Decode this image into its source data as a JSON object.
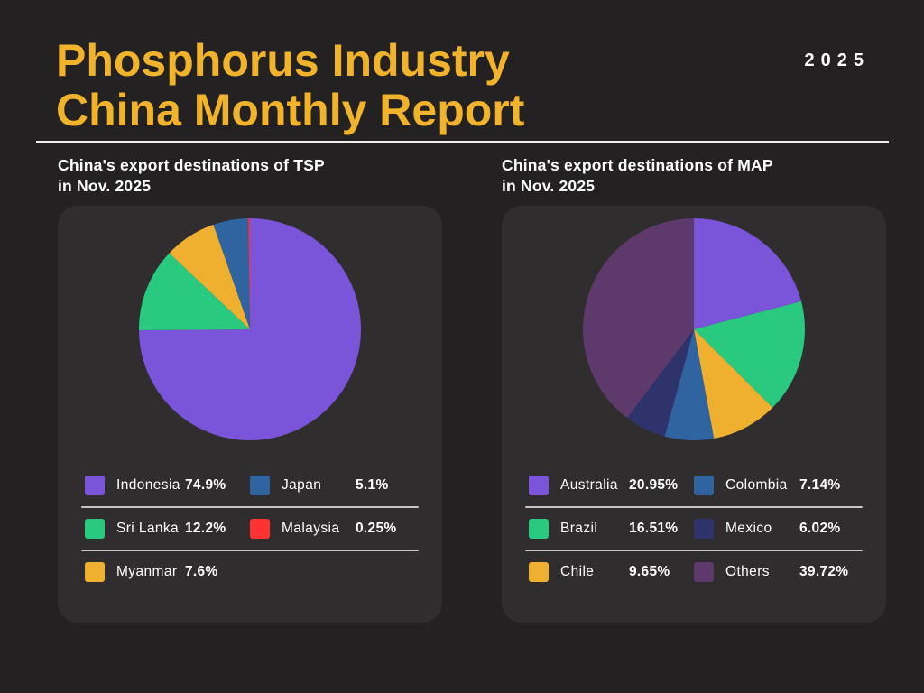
{
  "header": {
    "title_line1": "Phosphorus Industry",
    "title_line2": "China Monthly Report",
    "year_badge": "2025"
  },
  "colors": {
    "background": "#232121",
    "card": "#2F2D2D",
    "title_gold": "#F0B32B",
    "divider": "#C6C6C6",
    "text": "#FFFFFF"
  },
  "panels": [
    {
      "heading_line1": "China's export destinations of TSP",
      "heading_line2": "in Nov. 2025",
      "legend": [
        {
          "label": "Indonesia",
          "value": "74.9%",
          "color": "#7B55D9"
        },
        {
          "label": "Japan",
          "value": "5.1%",
          "color": "#2F64A1"
        },
        {
          "label": "Sri Lanka",
          "value": "12.2%",
          "color": "#29C97F"
        },
        {
          "label": "Malaysia",
          "value": "0.25%",
          "color": "#FF3131"
        },
        {
          "label": "Myanmar",
          "value": "7.6%",
          "color": "#EFB02F"
        }
      ]
    },
    {
      "heading_line1": "China's export destinations of MAP",
      "heading_line2": "in Nov. 2025",
      "legend": [
        {
          "label": "Australia",
          "value": "20.95%",
          "color": "#7B55D9"
        },
        {
          "label": "Colombia",
          "value": "7.14%",
          "color": "#2F64A1"
        },
        {
          "label": "Brazil",
          "value": "16.51%",
          "color": "#29C97F"
        },
        {
          "label": "Mexico",
          "value": "6.02%",
          "color": "#2E336C"
        },
        {
          "label": "Chile",
          "value": "9.65%",
          "color": "#EFB02F"
        },
        {
          "label": "Others",
          "value": "39.72%",
          "color": "#5E3A6C"
        }
      ]
    }
  ],
  "chart_data": [
    {
      "type": "pie",
      "title": "China's export destinations of TSP in Nov. 2025",
      "start_angle_deg": 0,
      "direction": "clockwise",
      "legend_position": "bottom",
      "slices": [
        {
          "label": "Indonesia",
          "value": 74.9,
          "color": "#7B55D9"
        },
        {
          "label": "Sri Lanka",
          "value": 12.2,
          "color": "#29C97F"
        },
        {
          "label": "Myanmar",
          "value": 7.6,
          "color": "#EFB02F"
        },
        {
          "label": "Japan",
          "value": 5.1,
          "color": "#2F64A1"
        },
        {
          "label": "Malaysia",
          "value": 0.25,
          "color": "#FF3131"
        }
      ]
    },
    {
      "type": "pie",
      "title": "China's export destinations of MAP in Nov. 2025",
      "start_angle_deg": 0,
      "direction": "clockwise",
      "legend_position": "bottom",
      "slices": [
        {
          "label": "Australia",
          "value": 20.95,
          "color": "#7B55D9"
        },
        {
          "label": "Brazil",
          "value": 16.51,
          "color": "#29C97F"
        },
        {
          "label": "Chile",
          "value": 9.65,
          "color": "#EFB02F"
        },
        {
          "label": "Colombia",
          "value": 7.14,
          "color": "#2F64A1"
        },
        {
          "label": "Mexico",
          "value": 6.02,
          "color": "#2E336C"
        },
        {
          "label": "Others",
          "value": 39.72,
          "color": "#5E3A6C"
        }
      ]
    }
  ]
}
